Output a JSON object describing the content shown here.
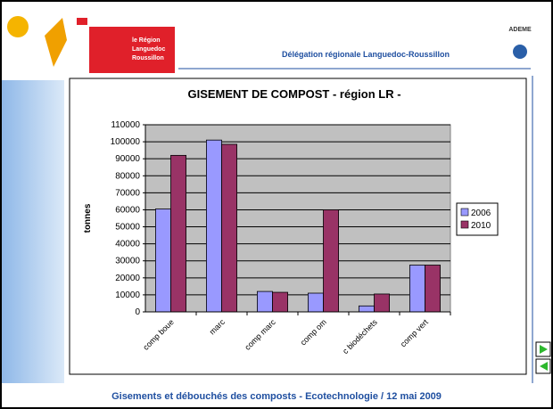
{
  "header": {
    "region_logo": [
      "le Région",
      "Languedoc",
      "Roussillon"
    ],
    "agency": "ADEME",
    "delegation": "Délégation régionale Languedoc-Roussillon"
  },
  "footer": "Gisements et débouchés des composts -  Ecotechnologie  /  12 mai 2009",
  "chart_data": {
    "type": "bar",
    "title": "GISEMENT DE COMPOST - région LR -",
    "y_label": "tonnes",
    "categories": [
      "comp boue",
      "marc",
      "comp marc",
      "comp om",
      "c biodéchets",
      "comp vert"
    ],
    "series": [
      {
        "name": "2006",
        "color": "#9999ff",
        "values": [
          60500,
          101000,
          12000,
          11000,
          3500,
          27500
        ]
      },
      {
        "name": "2010",
        "color": "#993366",
        "values": [
          92000,
          98500,
          11500,
          60000,
          10500,
          27500
        ]
      }
    ],
    "ylim": [
      0,
      110000
    ],
    "yticks": [
      0,
      10000,
      20000,
      30000,
      40000,
      50000,
      60000,
      70000,
      80000,
      90000,
      100000,
      110000
    ],
    "grid": true,
    "plot_background": "#c0c0c0",
    "legend": "right"
  }
}
